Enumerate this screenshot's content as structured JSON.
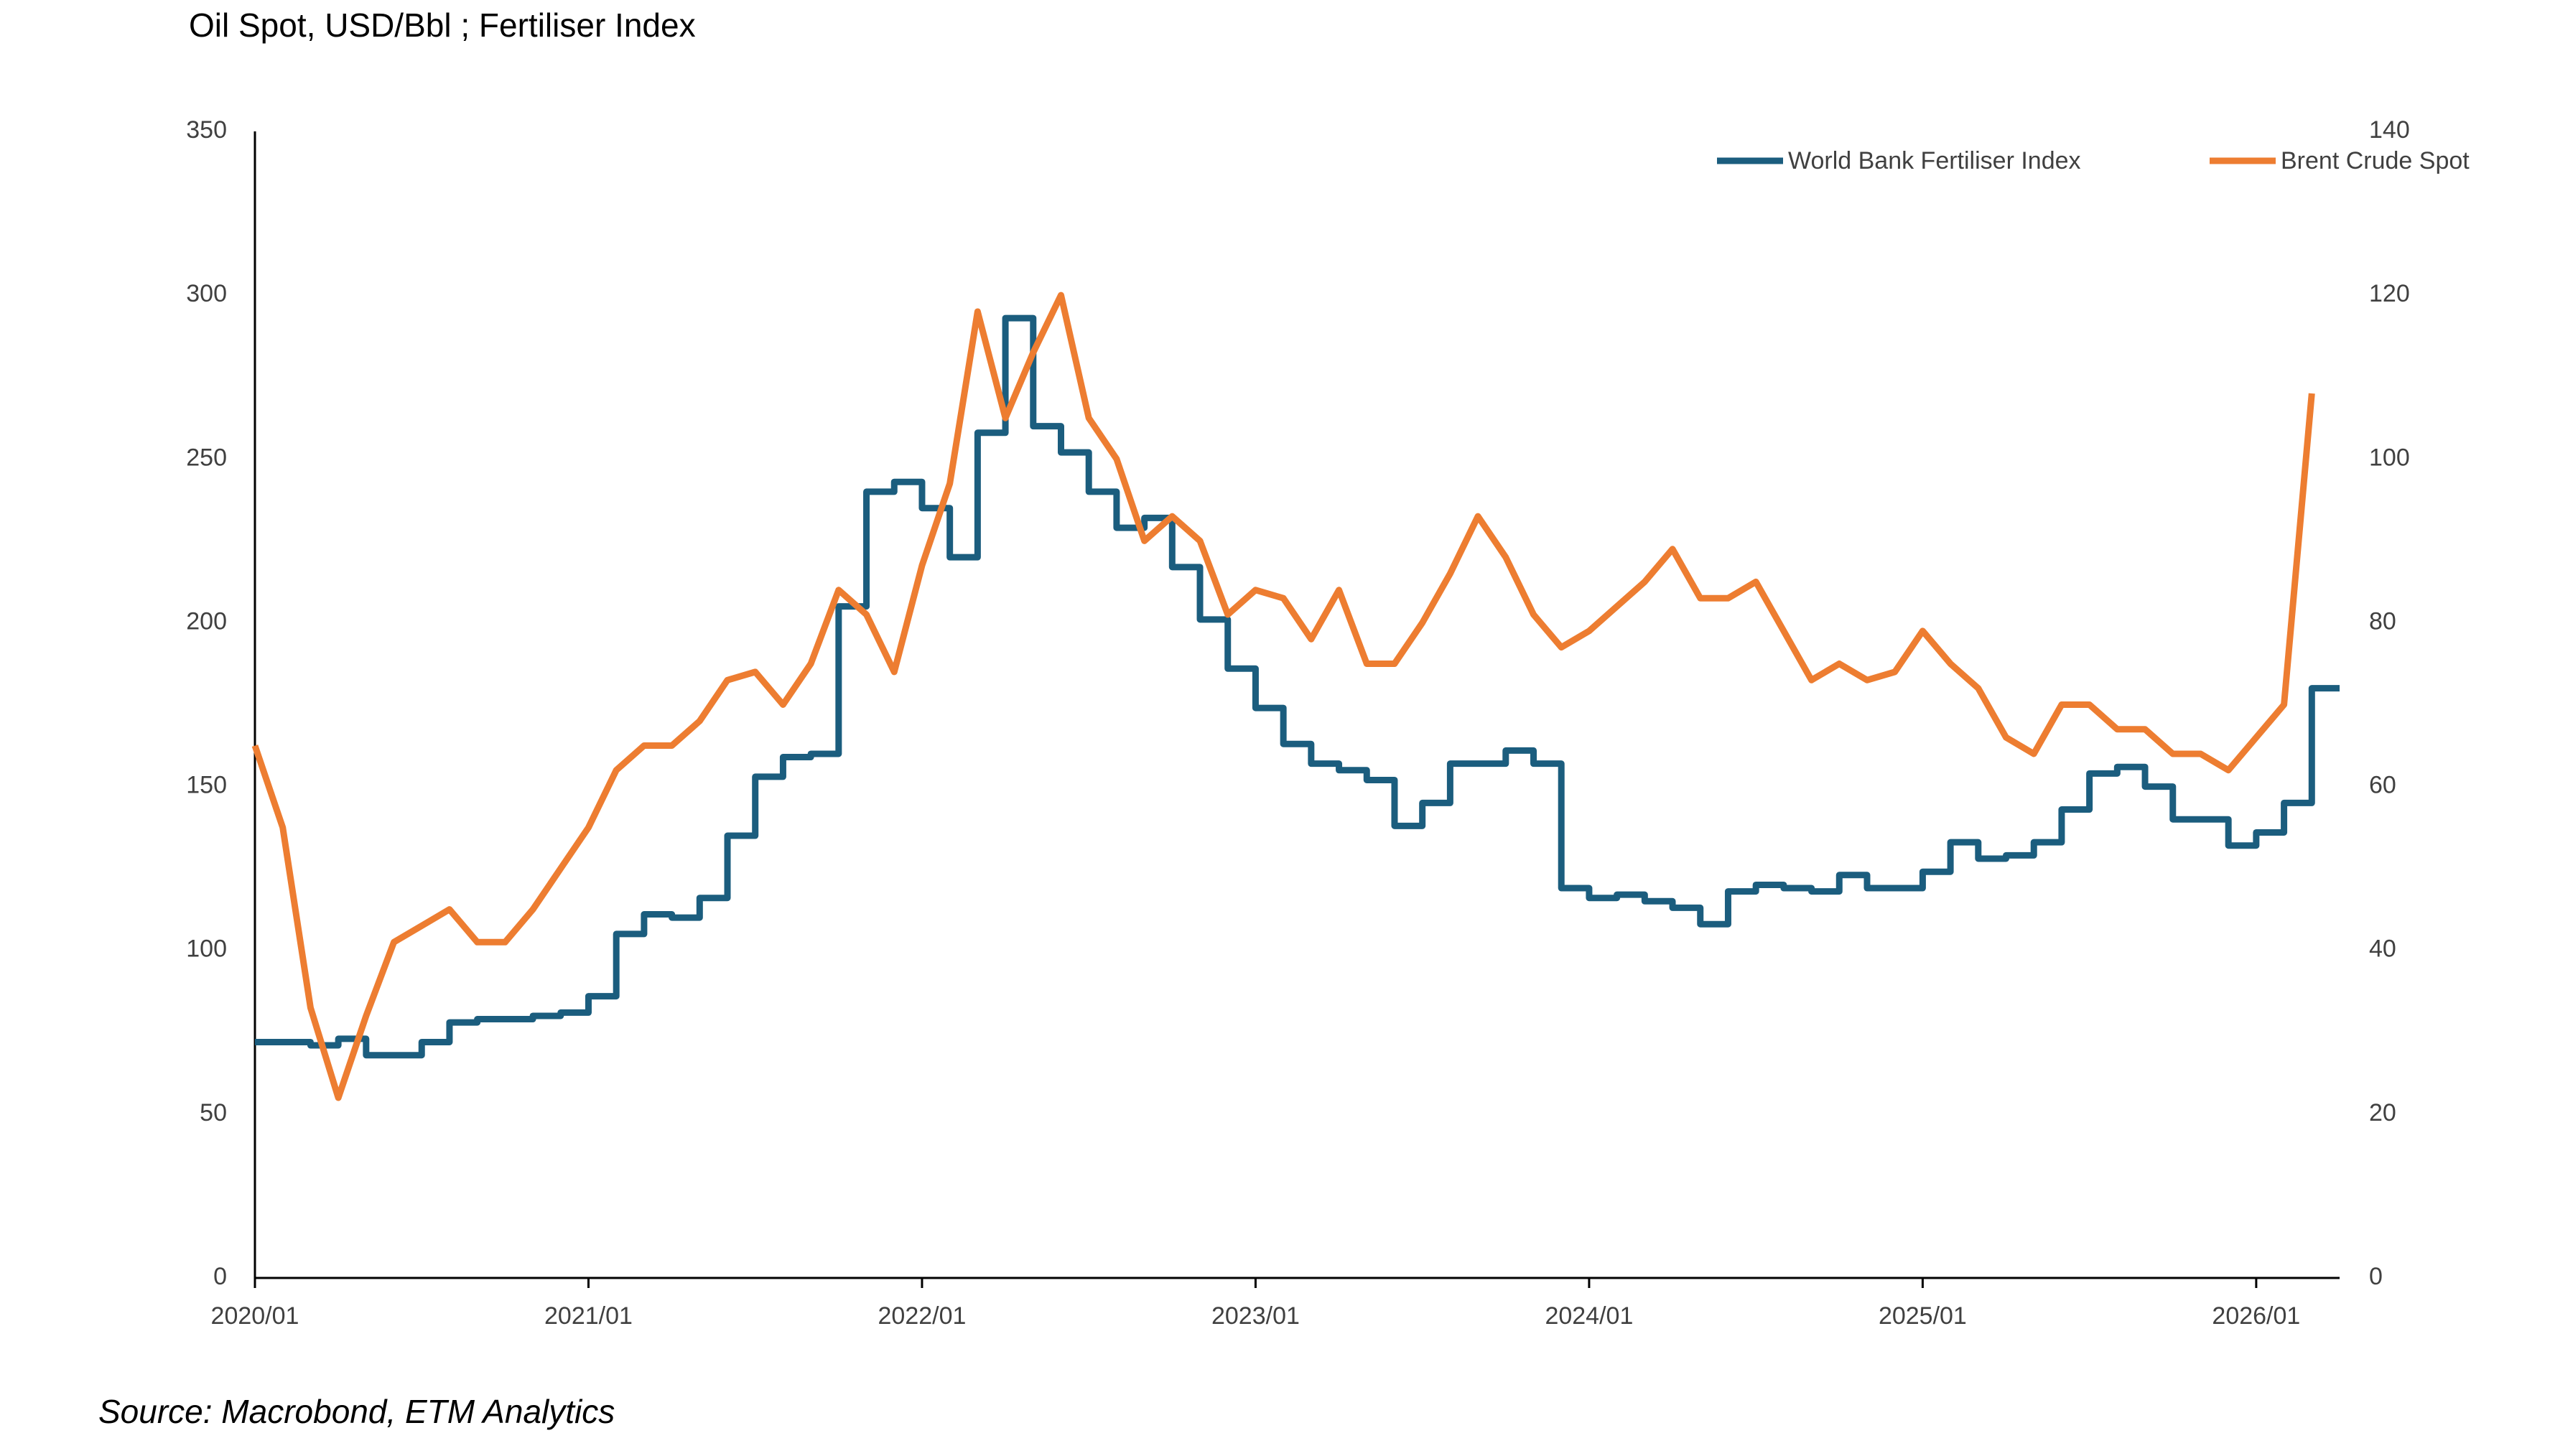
{
  "chart_data": {
    "type": "line",
    "title": "Oil Spot, USD/Bbl ; Fertiliser Index",
    "source": "Source: Macrobond, ETM Analytics",
    "x": [
      "2020/01",
      "2020/02",
      "2020/03",
      "2020/04",
      "2020/05",
      "2020/06",
      "2020/07",
      "2020/08",
      "2020/09",
      "2020/10",
      "2020/11",
      "2020/12",
      "2021/01",
      "2021/02",
      "2021/03",
      "2021/04",
      "2021/05",
      "2021/06",
      "2021/07",
      "2021/08",
      "2021/09",
      "2021/10",
      "2021/11",
      "2021/12",
      "2022/01",
      "2022/02",
      "2022/03",
      "2022/04",
      "2022/05",
      "2022/06",
      "2022/07",
      "2022/08",
      "2022/09",
      "2022/10",
      "2022/11",
      "2022/12",
      "2023/01",
      "2023/02",
      "2023/03",
      "2023/04",
      "2023/05",
      "2023/06",
      "2023/07",
      "2023/08",
      "2023/09",
      "2023/10",
      "2023/11",
      "2023/12",
      "2024/01",
      "2024/02",
      "2024/03",
      "2024/04",
      "2024/05",
      "2024/06",
      "2024/07",
      "2024/08",
      "2024/09",
      "2024/10",
      "2024/11",
      "2024/12",
      "2025/01",
      "2025/02",
      "2025/03",
      "2025/04",
      "2025/05",
      "2025/06",
      "2025/07",
      "2025/08",
      "2025/09",
      "2025/10",
      "2025/11",
      "2025/12",
      "2026/01",
      "2026/02",
      "2026/03"
    ],
    "xticks": [
      "2020/01",
      "2021/01",
      "2022/01",
      "2023/01",
      "2024/01",
      "2025/01",
      "2026/01"
    ],
    "ylim": [
      0,
      350
    ],
    "yticks": [
      0,
      50,
      100,
      150,
      200,
      250,
      300,
      350
    ],
    "y2lim": [
      0,
      140
    ],
    "y2ticks": [
      0,
      20,
      40,
      60,
      80,
      100,
      120,
      140
    ],
    "legend": "top-right",
    "series": [
      {
        "name": "World Bank Fertiliser Index",
        "color": "#1b5d7e",
        "step": true,
        "axis": "y",
        "values": [
          72,
          72,
          71,
          73,
          68,
          68,
          72,
          78,
          79,
          79,
          80,
          81,
          86,
          105,
          111,
          110,
          116,
          135,
          153,
          159,
          160,
          205,
          240,
          243,
          235,
          220,
          258,
          293,
          260,
          252,
          240,
          229,
          232,
          217,
          201,
          186,
          174,
          163,
          157,
          155,
          152,
          138,
          145,
          157,
          157,
          161,
          157,
          119,
          116,
          117,
          115,
          113,
          108,
          118,
          120,
          119,
          118,
          123,
          119,
          119,
          124,
          133,
          128,
          129,
          133,
          143,
          154,
          156,
          150,
          140,
          140,
          132,
          136,
          145,
          180
        ]
      },
      {
        "name": "Brent Crude Spot",
        "color": "#ed7d31",
        "axis": "y2",
        "values": [
          65,
          55,
          33,
          22,
          32,
          41,
          43,
          45,
          41,
          41,
          45,
          50,
          55,
          62,
          65,
          65,
          68,
          73,
          74,
          70,
          75,
          84,
          81,
          74,
          87,
          97,
          118,
          105,
          113,
          120,
          105,
          100,
          90,
          93,
          90,
          81,
          84,
          83,
          78,
          84,
          75,
          75,
          80,
          86,
          93,
          88,
          81,
          77,
          79,
          82,
          85,
          89,
          83,
          83,
          85,
          79,
          73,
          75,
          73,
          74,
          79,
          75,
          72,
          66,
          64,
          70,
          70,
          67,
          67,
          64,
          64,
          62,
          66,
          70,
          108
        ]
      }
    ]
  }
}
